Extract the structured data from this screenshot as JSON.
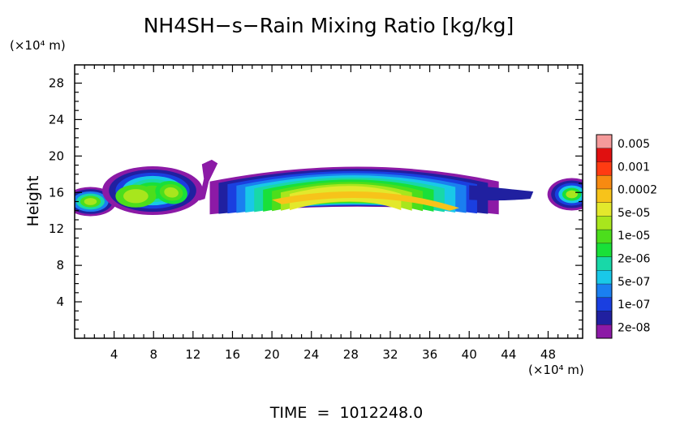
{
  "chart_data": {
    "type": "heatmap",
    "title": "NH4SH−s−Rain Mixing Ratio [kg/kg]",
    "ylabel": "Height",
    "xlabel": "",
    "x_unit_label": "(×10⁴ m)",
    "y_unit_label": "(×10⁴ m)",
    "footer": "TIME  =  1012248.0",
    "xlim": [
      0,
      51.5
    ],
    "ylim": [
      0,
      30
    ],
    "x_ticks": [
      "4",
      "8",
      "12",
      "16",
      "20",
      "24",
      "28",
      "32",
      "36",
      "40",
      "44",
      "48"
    ],
    "y_ticks": [
      "4",
      "8",
      "12",
      "16",
      "20",
      "24",
      "28"
    ],
    "colorbar": {
      "labels": [
        "0.005",
        "0.001",
        "0.0002",
        "5e-05",
        "1e-05",
        "2e-06",
        "5e-07",
        "1e-07",
        "2e-08"
      ],
      "colors": [
        "#8c1aa6",
        "#2020a0",
        "#1a3fe0",
        "#1a7ff0",
        "#19c8e8",
        "#18d8a8",
        "#19e039",
        "#4cde1c",
        "#a8e61d",
        "#e3e82c",
        "#f7c31a",
        "#f78a11",
        "#ff3b12",
        "#e01010",
        "#f59a9a"
      ]
    },
    "regions": [
      {
        "name": "left-edge-cell",
        "x": [
          0,
          3.8
        ],
        "y": [
          13.6,
          16.6
        ],
        "peak": "5e-05"
      },
      {
        "name": "left-cell",
        "x": [
          3.8,
          12.2
        ],
        "y": [
          14.2,
          18.4
        ],
        "peak": "1e-05"
      },
      {
        "name": "thin-plume",
        "x": [
          12.8,
          14.5
        ],
        "y": [
          15.2,
          19.5
        ],
        "peak": "1e-07"
      },
      {
        "name": "central-arc",
        "x": [
          13.7,
          43
        ],
        "y": [
          13.5,
          19.2
        ],
        "peak": "0.0002"
      },
      {
        "name": "right-edge-cell",
        "x": [
          48.3,
          51.5
        ],
        "y": [
          13.8,
          17.5
        ],
        "peak": "5e-05"
      }
    ]
  }
}
